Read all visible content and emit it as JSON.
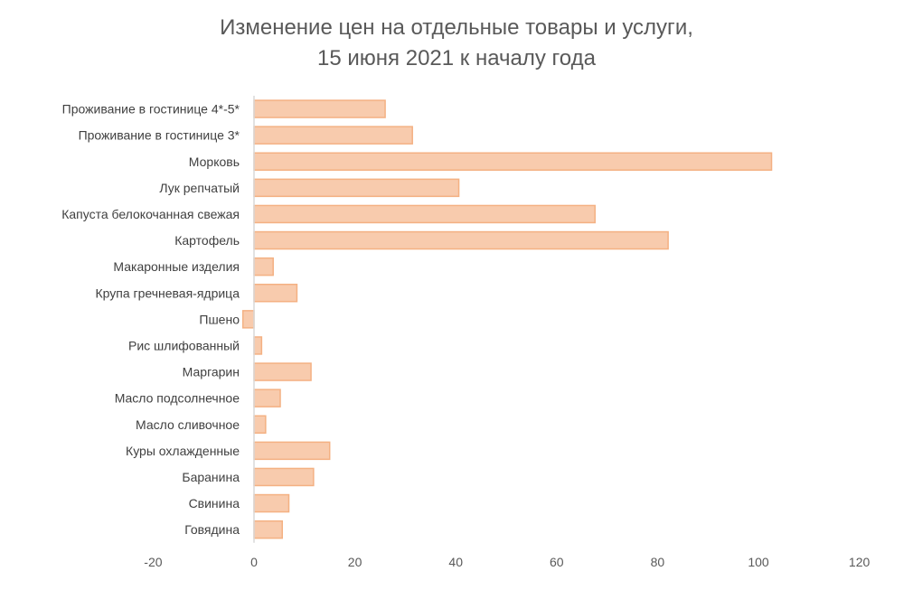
{
  "chart_data": {
    "type": "bar",
    "orientation": "horizontal",
    "title": [
      "Изменение цен на отдельные товары и услуги,",
      "15 июня 2021 к началу года"
    ],
    "categories": [
      "Проживание в гостинице 4*-5*",
      "Проживание в гостинице 3*",
      "Морковь",
      "Лук репчатый",
      "Капуста белокочанная свежая",
      "Картофель",
      "Макаронные изделия",
      "Крупа гречневая-ядрица",
      "Пшено",
      "Рис шлифованный",
      "Маргарин",
      "Масло подсолнечное",
      "Масло сливочное",
      "Куры охлажденные",
      "Баранина",
      "Свинина",
      "Говядина"
    ],
    "values": [
      26,
      31.4,
      102.6,
      40.6,
      67.6,
      82.1,
      3.8,
      8.5,
      -2.2,
      1.5,
      11.3,
      5.2,
      2.3,
      15,
      11.8,
      6.9,
      5.6
    ],
    "xlim": [
      -20,
      120
    ],
    "xticks": [
      "-20",
      "0",
      "20",
      "40",
      "60",
      "80",
      "100",
      "120"
    ],
    "xlabel": "",
    "ylabel": "",
    "grid": false,
    "legend": "none",
    "colors": {
      "bar_fill": "#F8CBAD",
      "bar_stroke": "#F4B183",
      "axis": "#D9D9D9"
    }
  }
}
